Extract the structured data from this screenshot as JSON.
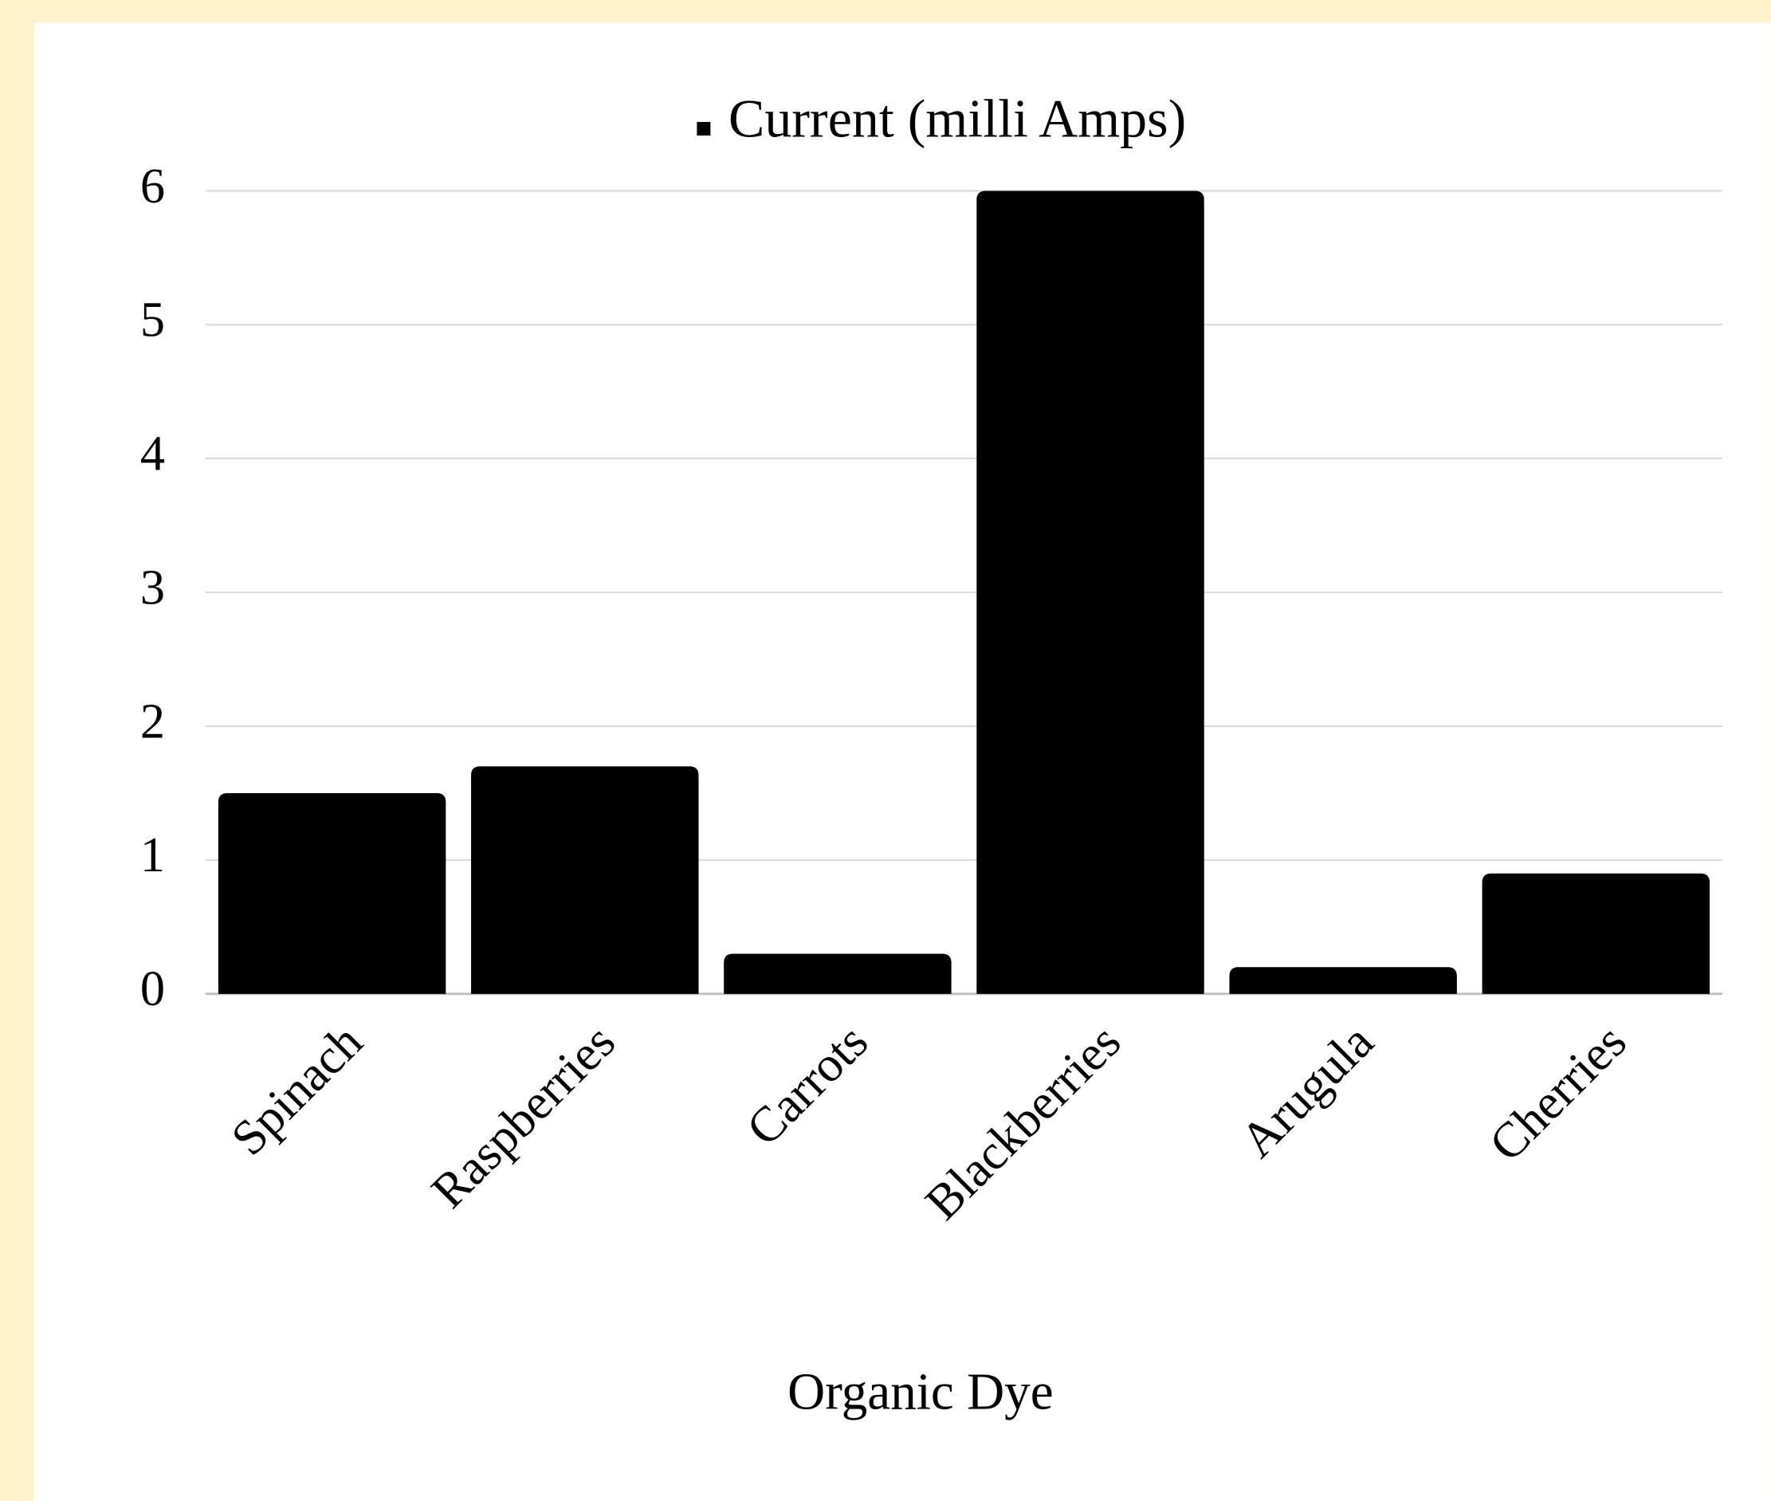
{
  "chart_data": {
    "type": "bar",
    "x_label": "Organic Dye",
    "categories": [
      "Spinach",
      "Raspberries",
      "Carrots",
      "Blackberries",
      "Arugula",
      "Cherries"
    ],
    "series": [
      {
        "name": "Current (milli Amps)",
        "color": "#000000",
        "values": [
          1.5,
          1.7,
          0.3,
          6,
          0.2,
          0.9
        ]
      }
    ],
    "ylim": [
      0,
      6
    ],
    "yticks": [
      0,
      1,
      2,
      3,
      4,
      5,
      6
    ],
    "grid": true,
    "legend": "top"
  }
}
